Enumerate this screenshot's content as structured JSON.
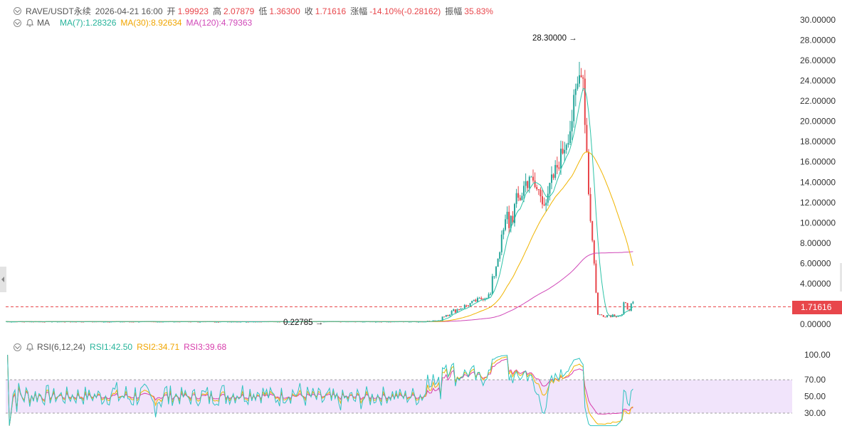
{
  "header": {
    "symbol": "RAVE/USDT永续",
    "datetime": "2026-04-21 16:00",
    "open_label": "开",
    "open": "1.99923",
    "high_label": "高",
    "high": "2.07879",
    "low_label": "低",
    "low": "1.36300",
    "close_label": "收",
    "close": "1.71616",
    "change_label": "涨幅",
    "change": "-14.10%(-0.28162)",
    "amplitude_label": "振幅",
    "amplitude": "35.83%"
  },
  "ma_legend": {
    "name": "MA",
    "ma7": "MA(7):1.28326",
    "ma30": "MA(30):8.92634",
    "ma120": "MA(120):4.79363"
  },
  "rsi_legend": {
    "name": "RSI(6,12,24)",
    "rsi1": "RSI1:42.50",
    "rsi2": "RSI2:34.71",
    "rsi3": "RSI3:39.68"
  },
  "price_axis": {
    "ticks": [
      "30.00000",
      "28.00000",
      "26.00000",
      "24.00000",
      "22.00000",
      "20.00000",
      "18.00000",
      "16.00000",
      "14.00000",
      "12.00000",
      "10.00000",
      "8.00000",
      "6.00000",
      "4.00000",
      "0.00000"
    ],
    "values": [
      30,
      28,
      26,
      24,
      22,
      20,
      18,
      16,
      14,
      12,
      10,
      8,
      6,
      4,
      0
    ]
  },
  "rsi_axis": {
    "ticks": [
      "100.00",
      "70.00",
      "50.00",
      "30.00"
    ],
    "values": [
      100,
      70,
      50,
      30
    ]
  },
  "current_price": "1.71616",
  "annotations": {
    "high": "28.30000 →",
    "low": "0.22785 →"
  },
  "colors": {
    "up": "#26a69a",
    "down": "#e8464b",
    "ma7": "#2ec3a7",
    "ma30": "#f0b400",
    "ma120": "#d048b8",
    "rsi1": "#2ec3c0",
    "rsi2": "#f0b400",
    "rsi3": "#d73dab",
    "rsi_band": "#f1e4fb"
  },
  "chart_data": {
    "type": "candlestick",
    "price_range": [
      0,
      30
    ],
    "ma7_last": 1.28326,
    "ma30_last": 8.92634,
    "ma120_last": 4.79363,
    "last_close": 1.71616,
    "period_high": 28.3,
    "period_low": 0.22785,
    "rsi_range": [
      0,
      100
    ],
    "rsi_band": [
      30,
      70
    ],
    "rsi1_last": 42.5,
    "rsi2_last": 34.71,
    "rsi3_last": 39.68
  }
}
